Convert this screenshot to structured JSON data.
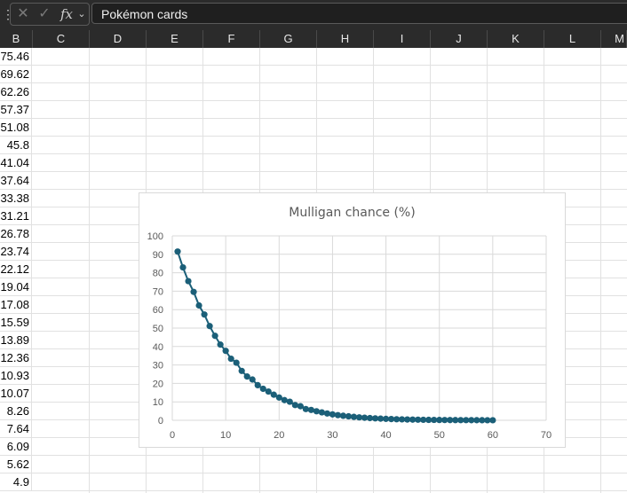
{
  "formula_bar": {
    "cancel_icon": "close-icon",
    "enter_icon": "check-icon",
    "fx_label": "fx",
    "chevron_icon": "chevron-down-icon",
    "value": "Pokémon cards"
  },
  "columns": [
    "B",
    "C",
    "D",
    "E",
    "F",
    "G",
    "H",
    "I",
    "J",
    "K",
    "L",
    "M"
  ],
  "column_b_values": [
    "75.46",
    "69.62",
    "62.26",
    "57.37",
    "51.08",
    "45.8",
    "41.04",
    "37.64",
    "33.38",
    "31.21",
    "26.78",
    "23.74",
    "22.12",
    "19.04",
    "17.08",
    "15.59",
    "13.89",
    "12.36",
    "10.93",
    "10.07",
    "8.26",
    "7.64",
    "6.09",
    "5.62",
    "4.9"
  ],
  "chart_data": {
    "type": "scatter",
    "title": "Mulligan chance (%)",
    "xlabel": "",
    "ylabel": "",
    "xlim": [
      0,
      70
    ],
    "ylim": [
      0,
      100
    ],
    "x_ticks": [
      "0",
      "10",
      "20",
      "30",
      "40",
      "50",
      "60",
      "70"
    ],
    "y_ticks": [
      "0",
      "10",
      "20",
      "30",
      "40",
      "50",
      "60",
      "70",
      "80",
      "90",
      "100"
    ],
    "grid": true,
    "line": true,
    "color": "#1b5f78",
    "series": [
      {
        "x": [
          1,
          2,
          3,
          4,
          5,
          6,
          7,
          8,
          9,
          10,
          11,
          12,
          13,
          14,
          15,
          16,
          17,
          18,
          19,
          20,
          21,
          22,
          23,
          24,
          25,
          26,
          27,
          28,
          29,
          30,
          31,
          32,
          33,
          34,
          35,
          36,
          37,
          38,
          39,
          40,
          41,
          42,
          43,
          44,
          45,
          46,
          47,
          48,
          49,
          50,
          51,
          52,
          53,
          54,
          55,
          56,
          57,
          58,
          59,
          60
        ],
        "y": [
          91.5,
          82.9,
          75.46,
          69.62,
          62.26,
          57.37,
          51.08,
          45.8,
          41.04,
          37.64,
          33.38,
          31.21,
          26.78,
          23.74,
          22.12,
          19.04,
          17.08,
          15.59,
          13.89,
          12.36,
          10.93,
          10.07,
          8.26,
          7.64,
          6.09,
          5.62,
          4.9,
          4.3,
          3.7,
          3.2,
          2.8,
          2.45,
          2.15,
          1.85,
          1.6,
          1.4,
          1.2,
          1.05,
          0.9,
          0.78,
          0.67,
          0.58,
          0.5,
          0.43,
          0.37,
          0.32,
          0.27,
          0.23,
          0.2,
          0.17,
          0.15,
          0.13,
          0.11,
          0.09,
          0.08,
          0.07,
          0.06,
          0.05,
          0.04,
          0.03
        ]
      }
    ]
  }
}
